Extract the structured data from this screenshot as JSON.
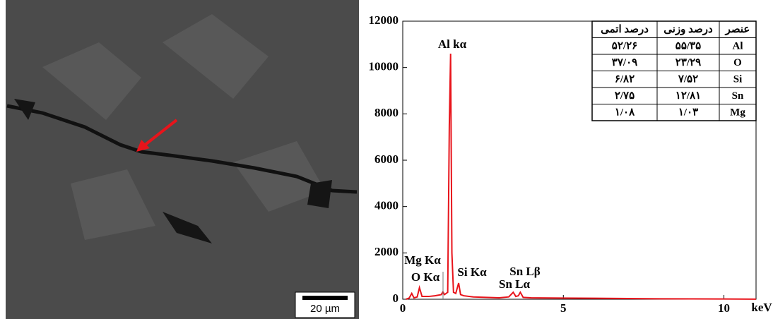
{
  "chart_data": {
    "type": "line",
    "x": [
      0.1,
      0.2,
      0.28,
      0.35,
      0.45,
      0.52,
      0.6,
      0.8,
      1.0,
      1.2,
      1.25,
      1.3,
      1.4,
      1.45,
      1.49,
      1.53,
      1.58,
      1.65,
      1.74,
      1.8,
      1.9,
      2.2,
      2.6,
      3.0,
      3.3,
      3.44,
      3.52,
      3.6,
      3.66,
      3.75,
      4.0,
      5,
      6,
      7,
      8,
      9,
      10,
      11
    ],
    "series": [
      {
        "color": "#e8141b",
        "values": [
          0,
          50,
          250,
          60,
          100,
          500,
          120,
          120,
          150,
          200,
          320,
          200,
          300,
          7500,
          10600,
          2000,
          300,
          250,
          700,
          200,
          150,
          100,
          80,
          60,
          100,
          300,
          120,
          150,
          300,
          80,
          60,
          50,
          40,
          30,
          20,
          15,
          10,
          5
        ]
      }
    ],
    "xlim": [
      0,
      11
    ],
    "ylim": [
      0,
      12000
    ],
    "xticks": [
      0,
      5,
      10
    ],
    "yticks": [
      0,
      2000,
      4000,
      6000,
      8000,
      10000,
      12000
    ],
    "x_label": "keV",
    "annotations": [
      "Al kα",
      "Mg Kα",
      "O Kα",
      "Si Kα",
      "Sn Lβ",
      "Sn Lα"
    ]
  },
  "table": {
    "header": [
      "درصد اتمی",
      "درصد وزنی",
      "عنصر"
    ],
    "rows": [
      [
        "۵۲/۲۶",
        "۵۵/۳۵",
        "Al"
      ],
      [
        "۳۷/۰۹",
        "۲۳/۲۹",
        "O"
      ],
      [
        "۶/۸۲",
        "۷/۵۲",
        "Si"
      ],
      [
        "۲/۷۵",
        "۱۲/۸۱",
        "Sn"
      ],
      [
        "۱/۰۸",
        "۱/۰۳",
        "Mg"
      ]
    ]
  },
  "image": {
    "scale_bar": "20 µm"
  }
}
